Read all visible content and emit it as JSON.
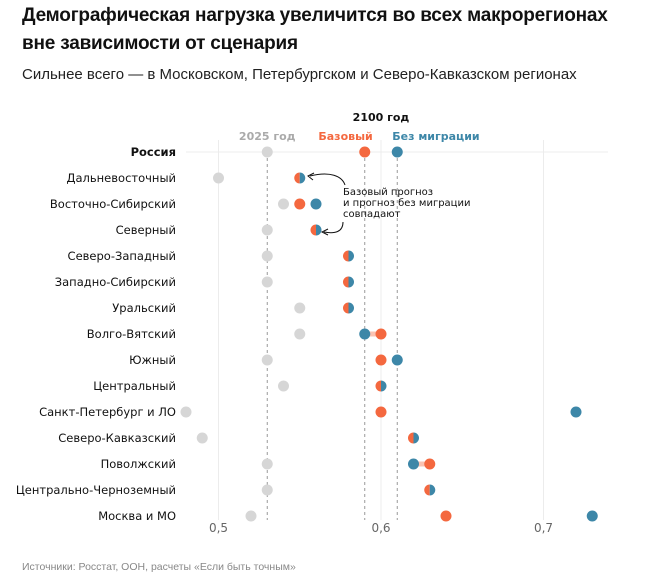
{
  "title": "Демографическая нагрузка увеличится во всех макрорегионах вне зависимости от сценария",
  "title_lines": [
    "Демографическая нагрузка увеличится во всех макрорегионах",
    "вне зависимости от сценария"
  ],
  "subtitle": "Сильнее всего — в Московском, Петербургском и Северо-Кавказском регионах",
  "source": "Источники: Росстат, ООН, расчеты «Если быть точным»",
  "chart_data": {
    "type": "dumbbell",
    "header": "2100 год",
    "annotation": [
      "Базовый прогноз",
      "и прогноз без миграции",
      "совпадают"
    ],
    "xlim": [
      0.48,
      0.74
    ],
    "xticks": [
      {
        "v": 0.5,
        "label": "0,5"
      },
      {
        "v": 0.6,
        "label": "0,6"
      },
      {
        "v": 0.7,
        "label": "0,7"
      }
    ],
    "grid": true,
    "reference_lines": [
      0.53,
      0.59,
      0.61
    ],
    "series": [
      {
        "name": "2025 год",
        "color": "#d6d6d6"
      },
      {
        "name": "Базовый",
        "color": "#f4683f"
      },
      {
        "name": "Без миграции",
        "color": "#3d87a8"
      }
    ],
    "categories": [
      "Россия",
      "Дальневосточный",
      "Восточно-Сибирский",
      "Северный",
      "Северо-Западный",
      "Западно-Сибирский",
      "Уральский",
      "Волго-Вятский",
      "Южный",
      "Центральный",
      "Санкт-Петербург и ЛО",
      "Северо-Кавказский",
      "Поволжский",
      "Центрально-Черноземный",
      "Москва и МО"
    ],
    "y2025": [
      0.53,
      0.5,
      0.54,
      0.53,
      0.53,
      0.53,
      0.55,
      0.55,
      0.53,
      0.54,
      0.48,
      0.49,
      0.53,
      0.53,
      0.52
    ],
    "base": [
      0.59,
      0.55,
      0.55,
      0.56,
      0.58,
      0.58,
      0.58,
      0.6,
      0.6,
      0.6,
      0.6,
      0.62,
      0.63,
      0.63,
      0.64
    ],
    "nomig": [
      0.61,
      0.55,
      0.56,
      0.56,
      0.58,
      0.58,
      0.58,
      0.59,
      0.61,
      0.6,
      0.72,
      0.62,
      0.62,
      0.63,
      0.73
    ]
  }
}
